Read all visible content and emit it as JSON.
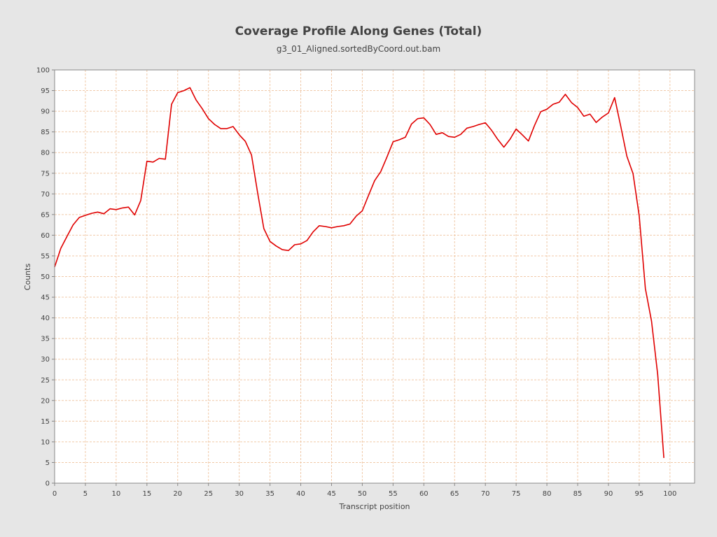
{
  "chart_data": {
    "type": "line",
    "title": "Coverage Profile Along Genes (Total)",
    "subtitle": "g3_01_Aligned.sortedByCoord.out.bam",
    "xlabel": "Transcript position",
    "ylabel": "Counts",
    "xlim": [
      0,
      104
    ],
    "ylim": [
      0,
      100
    ],
    "xticks": [
      0,
      5,
      10,
      15,
      20,
      25,
      30,
      35,
      40,
      45,
      50,
      55,
      60,
      65,
      70,
      75,
      80,
      85,
      90,
      95,
      100
    ],
    "yticks": [
      0,
      5,
      10,
      15,
      20,
      25,
      30,
      35,
      40,
      45,
      50,
      55,
      60,
      65,
      70,
      75,
      80,
      85,
      90,
      95,
      100
    ],
    "grid": true,
    "colors": {
      "background": "#e6e6e6",
      "plot_background": "#ffffff",
      "grid": "#f0c9a8",
      "line": "#e00000",
      "text": "#444444"
    },
    "series": [
      {
        "x": [
          0,
          1,
          2,
          3,
          4,
          5,
          6,
          7,
          8,
          9,
          10,
          11,
          12,
          13,
          14,
          15,
          16,
          17,
          18,
          19,
          20,
          21,
          22,
          23,
          24,
          25,
          26,
          27,
          28,
          29,
          30,
          31,
          32,
          33,
          34,
          35,
          36,
          37,
          38,
          39,
          40,
          41,
          42,
          43,
          44,
          45,
          46,
          47,
          48,
          49,
          50,
          51,
          52,
          53,
          54,
          55,
          56,
          57,
          58,
          59,
          60,
          61,
          62,
          63,
          64,
          65,
          66,
          67,
          68,
          69,
          70,
          71,
          72,
          73,
          74,
          75,
          76,
          77,
          78,
          79,
          80,
          81,
          82,
          83,
          84,
          85,
          86,
          87,
          88,
          89,
          90,
          91,
          92,
          93,
          94,
          95,
          96,
          97,
          98,
          99
        ],
        "values": [
          52.3,
          56.8,
          59.7,
          62.5,
          64.3,
          64.8,
          65.3,
          65.6,
          65.2,
          66.4,
          66.2,
          66.6,
          66.8,
          64.9,
          68.4,
          77.9,
          77.7,
          78.6,
          78.4,
          91.7,
          94.5,
          95.0,
          95.7,
          92.7,
          90.6,
          88.2,
          86.8,
          85.8,
          85.8,
          86.3,
          84.3,
          82.7,
          79.4,
          70.2,
          61.6,
          58.5,
          57.4,
          56.5,
          56.3,
          57.7,
          57.9,
          58.7,
          60.8,
          62.3,
          62.1,
          61.8,
          62.1,
          62.3,
          62.7,
          64.6,
          65.9,
          69.6,
          73.2,
          75.4,
          78.9,
          82.6,
          83.1,
          83.7,
          86.9,
          88.2,
          88.4,
          86.8,
          84.4,
          84.8,
          83.9,
          83.7,
          84.4,
          85.9,
          86.3,
          86.8,
          87.2,
          85.4,
          83.2,
          81.3,
          83.2,
          85.7,
          84.3,
          82.8,
          86.6,
          89.9,
          90.5,
          91.7,
          92.2,
          94.1,
          92.1,
          90.9,
          88.8,
          89.3,
          87.3,
          88.6,
          89.6,
          93.3,
          86.4,
          79.1,
          74.9,
          64.7,
          47.1,
          39.2,
          26.3,
          6.1
        ]
      }
    ]
  }
}
